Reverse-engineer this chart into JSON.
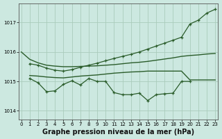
{
  "background_color": "#cce8e0",
  "grid_color": "#aaccbb",
  "line_color": "#2a5c2a",
  "xlabel": "Graphe pression niveau de la mer (hPa)",
  "xlabel_fontsize": 7,
  "ylim": [
    1013.7,
    1017.65
  ],
  "xlim": [
    -0.3,
    23.3
  ],
  "yticks": [
    1014,
    1015,
    1016,
    1017
  ],
  "xticks": [
    0,
    1,
    2,
    3,
    4,
    5,
    6,
    7,
    8,
    9,
    10,
    11,
    12,
    13,
    14,
    15,
    16,
    17,
    18,
    19,
    20,
    21,
    22,
    23
  ],
  "series": [
    {
      "x": [
        0,
        1,
        2,
        3,
        4,
        5,
        6,
        7,
        8,
        9,
        10,
        11,
        12,
        13,
        14,
        15,
        16,
        17,
        18,
        19,
        20,
        21,
        22,
        23
      ],
      "y": [
        1016.0,
        1015.75,
        1015.63,
        1015.55,
        1015.52,
        1015.5,
        1015.5,
        1015.51,
        1015.52,
        1015.53,
        1015.55,
        1015.57,
        1015.6,
        1015.63,
        1015.65,
        1015.68,
        1015.72,
        1015.76,
        1015.8,
        1015.85,
        1015.88,
        1015.9,
        1015.93,
        1015.95
      ],
      "marker": false,
      "linewidth": 1.0
    },
    {
      "x": [
        1,
        2,
        3,
        4,
        5,
        6,
        7,
        8,
        9,
        10,
        11,
        12,
        13,
        14,
        15,
        16,
        17,
        18,
        19,
        20,
        21,
        22,
        23
      ],
      "y": [
        1015.6,
        1015.55,
        1015.45,
        1015.38,
        1015.35,
        1015.4,
        1015.48,
        1015.55,
        1015.62,
        1015.7,
        1015.78,
        1015.85,
        1015.92,
        1016.0,
        1016.1,
        1016.2,
        1016.3,
        1016.4,
        1016.5,
        1016.95,
        1017.08,
        1017.32,
        1017.45
      ],
      "marker": true,
      "linewidth": 0.9
    },
    {
      "x": [
        1,
        2,
        3,
        4,
        5,
        6,
        7,
        8,
        9,
        10,
        11,
        12,
        13,
        14,
        15,
        16,
        17,
        18,
        19,
        20
      ],
      "y": [
        1015.1,
        1014.95,
        1014.65,
        1014.68,
        1014.9,
        1015.02,
        1014.88,
        1015.1,
        1015.0,
        1015.0,
        1014.62,
        1014.55,
        1014.55,
        1014.6,
        1014.35,
        1014.55,
        1014.58,
        1014.6,
        1015.0,
        1015.0
      ],
      "marker": true,
      "linewidth": 0.9
    },
    {
      "x": [
        1,
        2,
        3,
        4,
        5,
        6,
        7,
        8,
        9,
        10,
        11,
        12,
        13,
        14,
        15,
        16,
        17,
        18,
        19,
        20,
        21,
        22,
        23
      ],
      "y": [
        1015.2,
        1015.18,
        1015.15,
        1015.13,
        1015.12,
        1015.15,
        1015.18,
        1015.2,
        1015.22,
        1015.25,
        1015.28,
        1015.3,
        1015.32,
        1015.33,
        1015.35,
        1015.35,
        1015.35,
        1015.35,
        1015.35,
        1015.05,
        1015.05,
        1015.05,
        1015.05
      ],
      "marker": false,
      "linewidth": 1.0
    }
  ]
}
